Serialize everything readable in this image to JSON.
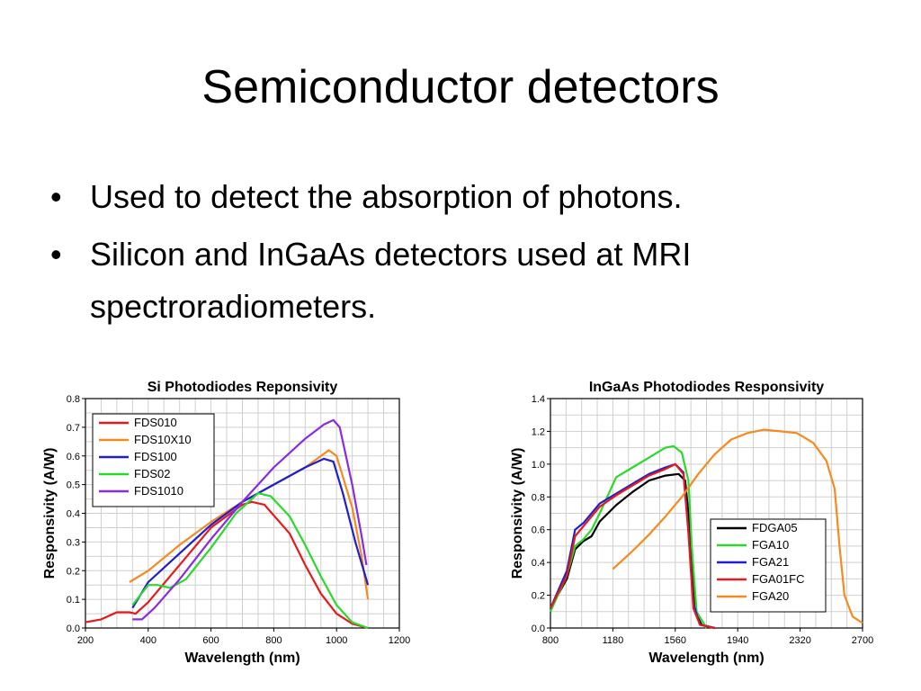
{
  "slide": {
    "title": "Semiconductor detectors",
    "bullets": [
      {
        "marker": "•",
        "text": "Used to detect the absorption of photons."
      },
      {
        "marker": "•",
        "text": "Silicon and InGaAs detectors used at MRI spectroradiometers."
      }
    ]
  },
  "chart_data": [
    {
      "type": "line",
      "title": "Si Photodiodes Reponsivity",
      "xlabel": "Wavelength (nm)",
      "ylabel": "Responsivity (A/W)",
      "xlim": [
        200,
        1200
      ],
      "ylim": [
        0.0,
        0.8
      ],
      "xticks": [
        "200",
        "400",
        "600",
        "800",
        "1000",
        "1200"
      ],
      "yticks": [
        "0.0",
        "0.1",
        "0.2",
        "0.3",
        "0.4",
        "0.5",
        "0.6",
        "0.7",
        "0.8"
      ],
      "grid": true,
      "legend_position": "top-left",
      "series": [
        {
          "name": "FDS010",
          "color": "#e41a1c",
          "points": [
            [
              200,
              0.02
            ],
            [
              250,
              0.03
            ],
            [
              300,
              0.055
            ],
            [
              340,
              0.055
            ],
            [
              360,
              0.05
            ],
            [
              400,
              0.09
            ],
            [
              500,
              0.22
            ],
            [
              600,
              0.35
            ],
            [
              700,
              0.43
            ],
            [
              730,
              0.44
            ],
            [
              770,
              0.43
            ],
            [
              850,
              0.33
            ],
            [
              900,
              0.22
            ],
            [
              950,
              0.12
            ],
            [
              1000,
              0.05
            ],
            [
              1050,
              0.015
            ],
            [
              1100,
              0.0
            ]
          ]
        },
        {
          "name": "FDS10X10",
          "color": "#f58a1f",
          "points": [
            [
              340,
              0.16
            ],
            [
              400,
              0.2
            ],
            [
              500,
              0.29
            ],
            [
              600,
              0.37
            ],
            [
              700,
              0.44
            ],
            [
              800,
              0.5
            ],
            [
              900,
              0.56
            ],
            [
              950,
              0.6
            ],
            [
              975,
              0.62
            ],
            [
              1000,
              0.6
            ],
            [
              1050,
              0.42
            ],
            [
              1080,
              0.25
            ],
            [
              1100,
              0.1
            ]
          ]
        },
        {
          "name": "FDS100",
          "color": "#1f1fd0",
          "points": [
            [
              350,
              0.07
            ],
            [
              400,
              0.16
            ],
            [
              500,
              0.26
            ],
            [
              600,
              0.36
            ],
            [
              700,
              0.44
            ],
            [
              800,
              0.5
            ],
            [
              900,
              0.56
            ],
            [
              960,
              0.59
            ],
            [
              990,
              0.58
            ],
            [
              1020,
              0.47
            ],
            [
              1060,
              0.3
            ],
            [
              1100,
              0.15
            ]
          ]
        },
        {
          "name": "FDS02",
          "color": "#2bd92b",
          "points": [
            [
              350,
              0.08
            ],
            [
              400,
              0.15
            ],
            [
              430,
              0.15
            ],
            [
              470,
              0.14
            ],
            [
              520,
              0.17
            ],
            [
              600,
              0.28
            ],
            [
              680,
              0.4
            ],
            [
              750,
              0.47
            ],
            [
              790,
              0.46
            ],
            [
              850,
              0.39
            ],
            [
              900,
              0.29
            ],
            [
              950,
              0.18
            ],
            [
              1000,
              0.08
            ],
            [
              1050,
              0.02
            ],
            [
              1100,
              0.0
            ]
          ]
        },
        {
          "name": "FDS1010",
          "color": "#8a2be2",
          "points": [
            [
              350,
              0.03
            ],
            [
              380,
              0.03
            ],
            [
              420,
              0.07
            ],
            [
              500,
              0.17
            ],
            [
              600,
              0.31
            ],
            [
              700,
              0.44
            ],
            [
              800,
              0.56
            ],
            [
              900,
              0.66
            ],
            [
              960,
              0.71
            ],
            [
              990,
              0.725
            ],
            [
              1010,
              0.7
            ],
            [
              1050,
              0.5
            ],
            [
              1080,
              0.32
            ],
            [
              1095,
              0.22
            ]
          ]
        }
      ]
    },
    {
      "type": "line",
      "title": "InGaAs Photodiodes Responsivity",
      "xlabel": "Wavelength (nm)",
      "ylabel": "Responsivity (A/W)",
      "xlim": [
        800,
        2700
      ],
      "ylim": [
        0.0,
        1.4
      ],
      "xticks": [
        "800",
        "1180",
        "1560",
        "1940",
        "2320",
        "2700"
      ],
      "yticks": [
        "0.0",
        "0.2",
        "0.4",
        "0.6",
        "0.8",
        "1.0",
        "1.2",
        "1.4"
      ],
      "grid": true,
      "legend_position": "bottom-center",
      "series": [
        {
          "name": "FDGA05",
          "color": "#000000",
          "points": [
            [
              800,
              0.12
            ],
            [
              900,
              0.3
            ],
            [
              950,
              0.48
            ],
            [
              1000,
              0.53
            ],
            [
              1050,
              0.56
            ],
            [
              1100,
              0.65
            ],
            [
              1200,
              0.75
            ],
            [
              1300,
              0.83
            ],
            [
              1400,
              0.9
            ],
            [
              1500,
              0.93
            ],
            [
              1580,
              0.94
            ],
            [
              1620,
              0.9
            ],
            [
              1650,
              0.6
            ],
            [
              1680,
              0.1
            ],
            [
              1720,
              0.02
            ],
            [
              1800,
              0.0
            ]
          ]
        },
        {
          "name": "FGA10",
          "color": "#2bd92b",
          "points": [
            [
              800,
              0.1
            ],
            [
              900,
              0.32
            ],
            [
              950,
              0.5
            ],
            [
              1000,
              0.54
            ],
            [
              1050,
              0.6
            ],
            [
              1100,
              0.7
            ],
            [
              1200,
              0.92
            ],
            [
              1300,
              0.98
            ],
            [
              1400,
              1.04
            ],
            [
              1500,
              1.1
            ],
            [
              1550,
              1.11
            ],
            [
              1600,
              1.07
            ],
            [
              1640,
              0.9
            ],
            [
              1660,
              0.5
            ],
            [
              1690,
              0.1
            ],
            [
              1750,
              0.0
            ]
          ]
        },
        {
          "name": "FGA21",
          "color": "#1f1fd0",
          "points": [
            [
              800,
              0.12
            ],
            [
              900,
              0.35
            ],
            [
              950,
              0.6
            ],
            [
              1000,
              0.64
            ],
            [
              1050,
              0.7
            ],
            [
              1100,
              0.76
            ],
            [
              1200,
              0.82
            ],
            [
              1300,
              0.88
            ],
            [
              1400,
              0.94
            ],
            [
              1500,
              0.98
            ],
            [
              1560,
              1.0
            ],
            [
              1610,
              0.95
            ],
            [
              1640,
              0.6
            ],
            [
              1670,
              0.15
            ],
            [
              1710,
              0.02
            ],
            [
              1800,
              0.0
            ]
          ]
        },
        {
          "name": "FGA01FC",
          "color": "#e41a1c",
          "points": [
            [
              800,
              0.12
            ],
            [
              900,
              0.32
            ],
            [
              950,
              0.56
            ],
            [
              1000,
              0.62
            ],
            [
              1050,
              0.68
            ],
            [
              1100,
              0.74
            ],
            [
              1200,
              0.81
            ],
            [
              1300,
              0.87
            ],
            [
              1400,
              0.93
            ],
            [
              1500,
              0.97
            ],
            [
              1560,
              1.0
            ],
            [
              1610,
              0.94
            ],
            [
              1640,
              0.58
            ],
            [
              1670,
              0.12
            ],
            [
              1710,
              0.02
            ],
            [
              1800,
              0.0
            ]
          ]
        },
        {
          "name": "FGA20",
          "color": "#f58a1f",
          "points": [
            [
              1180,
              0.36
            ],
            [
              1300,
              0.47
            ],
            [
              1400,
              0.57
            ],
            [
              1500,
              0.68
            ],
            [
              1600,
              0.8
            ],
            [
              1700,
              0.94
            ],
            [
              1800,
              1.06
            ],
            [
              1900,
              1.15
            ],
            [
              2000,
              1.19
            ],
            [
              2100,
              1.21
            ],
            [
              2200,
              1.2
            ],
            [
              2300,
              1.19
            ],
            [
              2400,
              1.13
            ],
            [
              2480,
              1.02
            ],
            [
              2530,
              0.85
            ],
            [
              2560,
              0.5
            ],
            [
              2590,
              0.2
            ],
            [
              2640,
              0.07
            ],
            [
              2700,
              0.03
            ]
          ]
        }
      ]
    }
  ]
}
